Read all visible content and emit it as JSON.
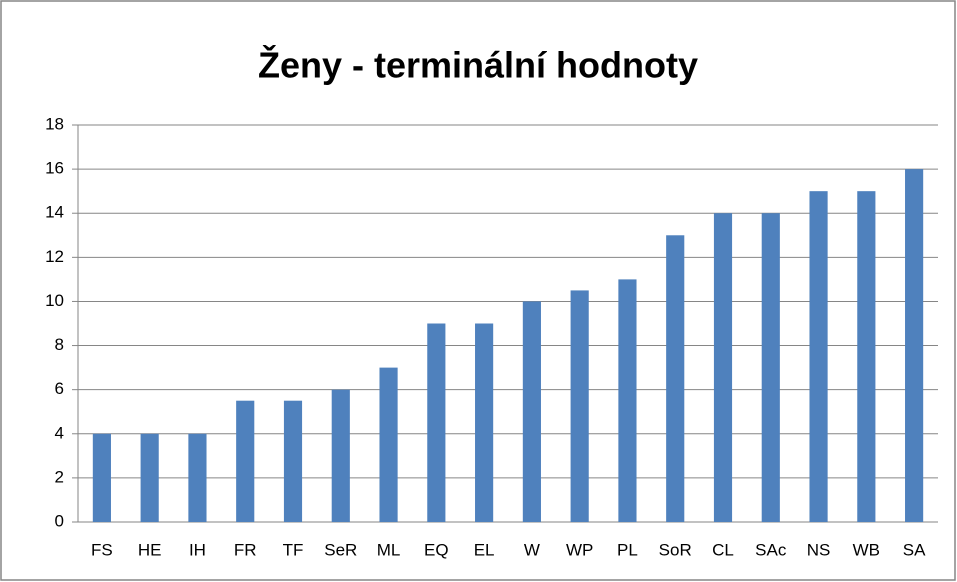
{
  "chart_data": {
    "type": "bar",
    "title": "Ženy - terminální hodnoty",
    "categories": [
      "FS",
      "HE",
      "IH",
      "FR",
      "TF",
      "SeR",
      "ML",
      "EQ",
      "EL",
      "W",
      "WP",
      "PL",
      "SoR",
      "CL",
      "SAc",
      "NS",
      "WB",
      "SA"
    ],
    "values": [
      4,
      4,
      4,
      5.5,
      5.5,
      6,
      7,
      9,
      9,
      10,
      10.5,
      11,
      13,
      14,
      14,
      15,
      15,
      16
    ],
    "color": "#4f81bd",
    "ylim": [
      0,
      18
    ],
    "yticks": [
      0,
      2,
      4,
      6,
      8,
      10,
      12,
      14,
      16,
      18
    ],
    "grid": true
  }
}
